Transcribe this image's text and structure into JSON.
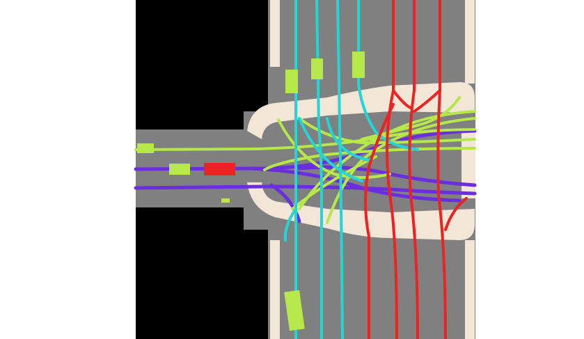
{
  "map": {
    "kind": "bird's-eye semantic traffic intersection map",
    "colors": {
      "page_background": "#ffffff",
      "void": "#000000",
      "road": "#808080",
      "crosswalk_and_curb": "#f2e6d6",
      "ego_vehicle": "#ee2222",
      "other_vehicle": "#b6e84a",
      "route_eastbound": "#6a2de0",
      "route_westbound_turns": "#b6e84a",
      "route_southbound": "#22d6d6",
      "route_northbound": "#ee2222"
    },
    "lanes": [
      {
        "name": "southbound-lane",
        "direction": "south",
        "color": "#22d6d6"
      },
      {
        "name": "northbound-lane",
        "direction": "north",
        "color": "#ee2222"
      },
      {
        "name": "eastbound-lane",
        "direction": "east",
        "color": "#6a2de0"
      },
      {
        "name": "turning-lane",
        "direction": "west",
        "color": "#b6e84a"
      }
    ],
    "vehicles": [
      {
        "name": "ego-vehicle",
        "role": "ego",
        "color": "#ee2222"
      },
      {
        "name": "vehicle-west-1",
        "role": "other",
        "color": "#b6e84a"
      },
      {
        "name": "vehicle-west-2",
        "role": "other",
        "color": "#b6e84a"
      },
      {
        "name": "vehicle-north-1",
        "role": "other",
        "color": "#b6e84a"
      },
      {
        "name": "vehicle-north-2",
        "role": "other",
        "color": "#b6e84a"
      },
      {
        "name": "vehicle-north-3",
        "role": "other",
        "color": "#b6e84a"
      },
      {
        "name": "vehicle-south-1",
        "role": "other",
        "color": "#b6e84a"
      }
    ]
  }
}
